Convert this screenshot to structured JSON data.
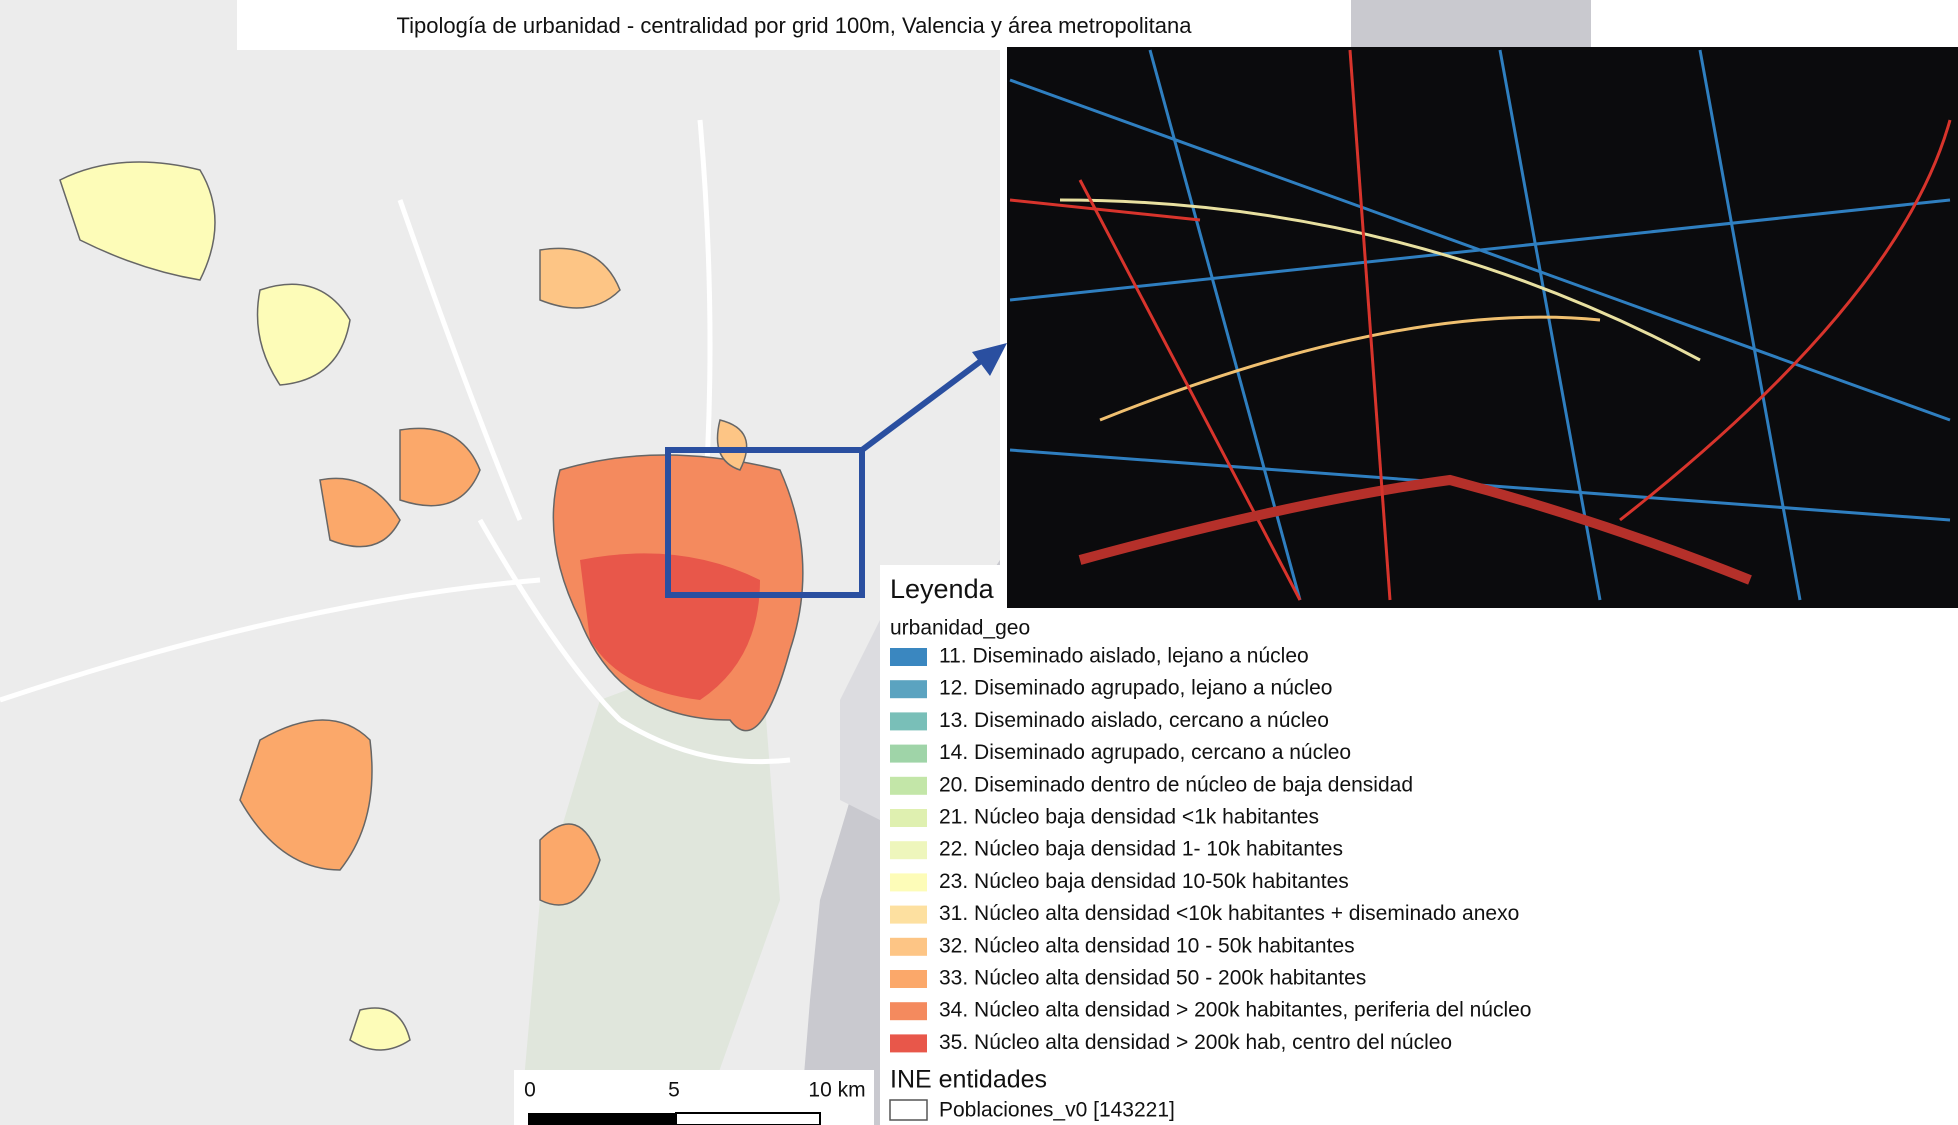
{
  "title": "Tipología de urbanidad - centralidad por grid 100m, Valencia y área metropolitana",
  "legend": {
    "title": "Leyenda",
    "layer": "urbanidad_geo",
    "items": [
      {
        "label": "11. Diseminado aislado, lejano a núcleo",
        "color": "#3a87c0"
      },
      {
        "label": "12. Diseminado agrupado, lejano a núcleo",
        "color": "#5ba3c0"
      },
      {
        "label": "13. Diseminado aislado, cercano a núcleo",
        "color": "#79bfb8"
      },
      {
        "label": "14. Diseminado agrupado, cercano a núcleo",
        "color": "#9fd4a8"
      },
      {
        "label": "20. Diseminado dentro de núcleo de baja densidad",
        "color": "#c3e6a8"
      },
      {
        "label": "21. Núcleo baja densidad <1k habitantes",
        "color": "#dff0b0"
      },
      {
        "label": "22. Núcleo baja densidad 1- 10k habitantes",
        "color": "#eef6bc"
      },
      {
        "label": "23. Núcleo baja densidad 10-50k habitantes",
        "color": "#fdfcb8"
      },
      {
        "label": "31. Núcleo alta densidad <10k habitantes + diseminado anexo",
        "color": "#fde0a0"
      },
      {
        "label": "32. Núcleo alta densidad 10 - 50k habitantes",
        "color": "#fdc585"
      },
      {
        "label": "33. Núcleo alta densidad 50 - 200k habitantes",
        "color": "#fba86a"
      },
      {
        "label": "34. Núcleo alta densidad > 200k habitantes, periferia del núcleo",
        "color": "#f48a5e"
      },
      {
        "label": "35. Núcleo alta densidad > 200k hab, centro del núcleo",
        "color": "#e8574a"
      }
    ],
    "group": "INE entidades",
    "outline_layer": "Poblaciones_v0 [143221]"
  },
  "scale_bar": {
    "labels": [
      "0",
      "5",
      "10 km"
    ]
  }
}
